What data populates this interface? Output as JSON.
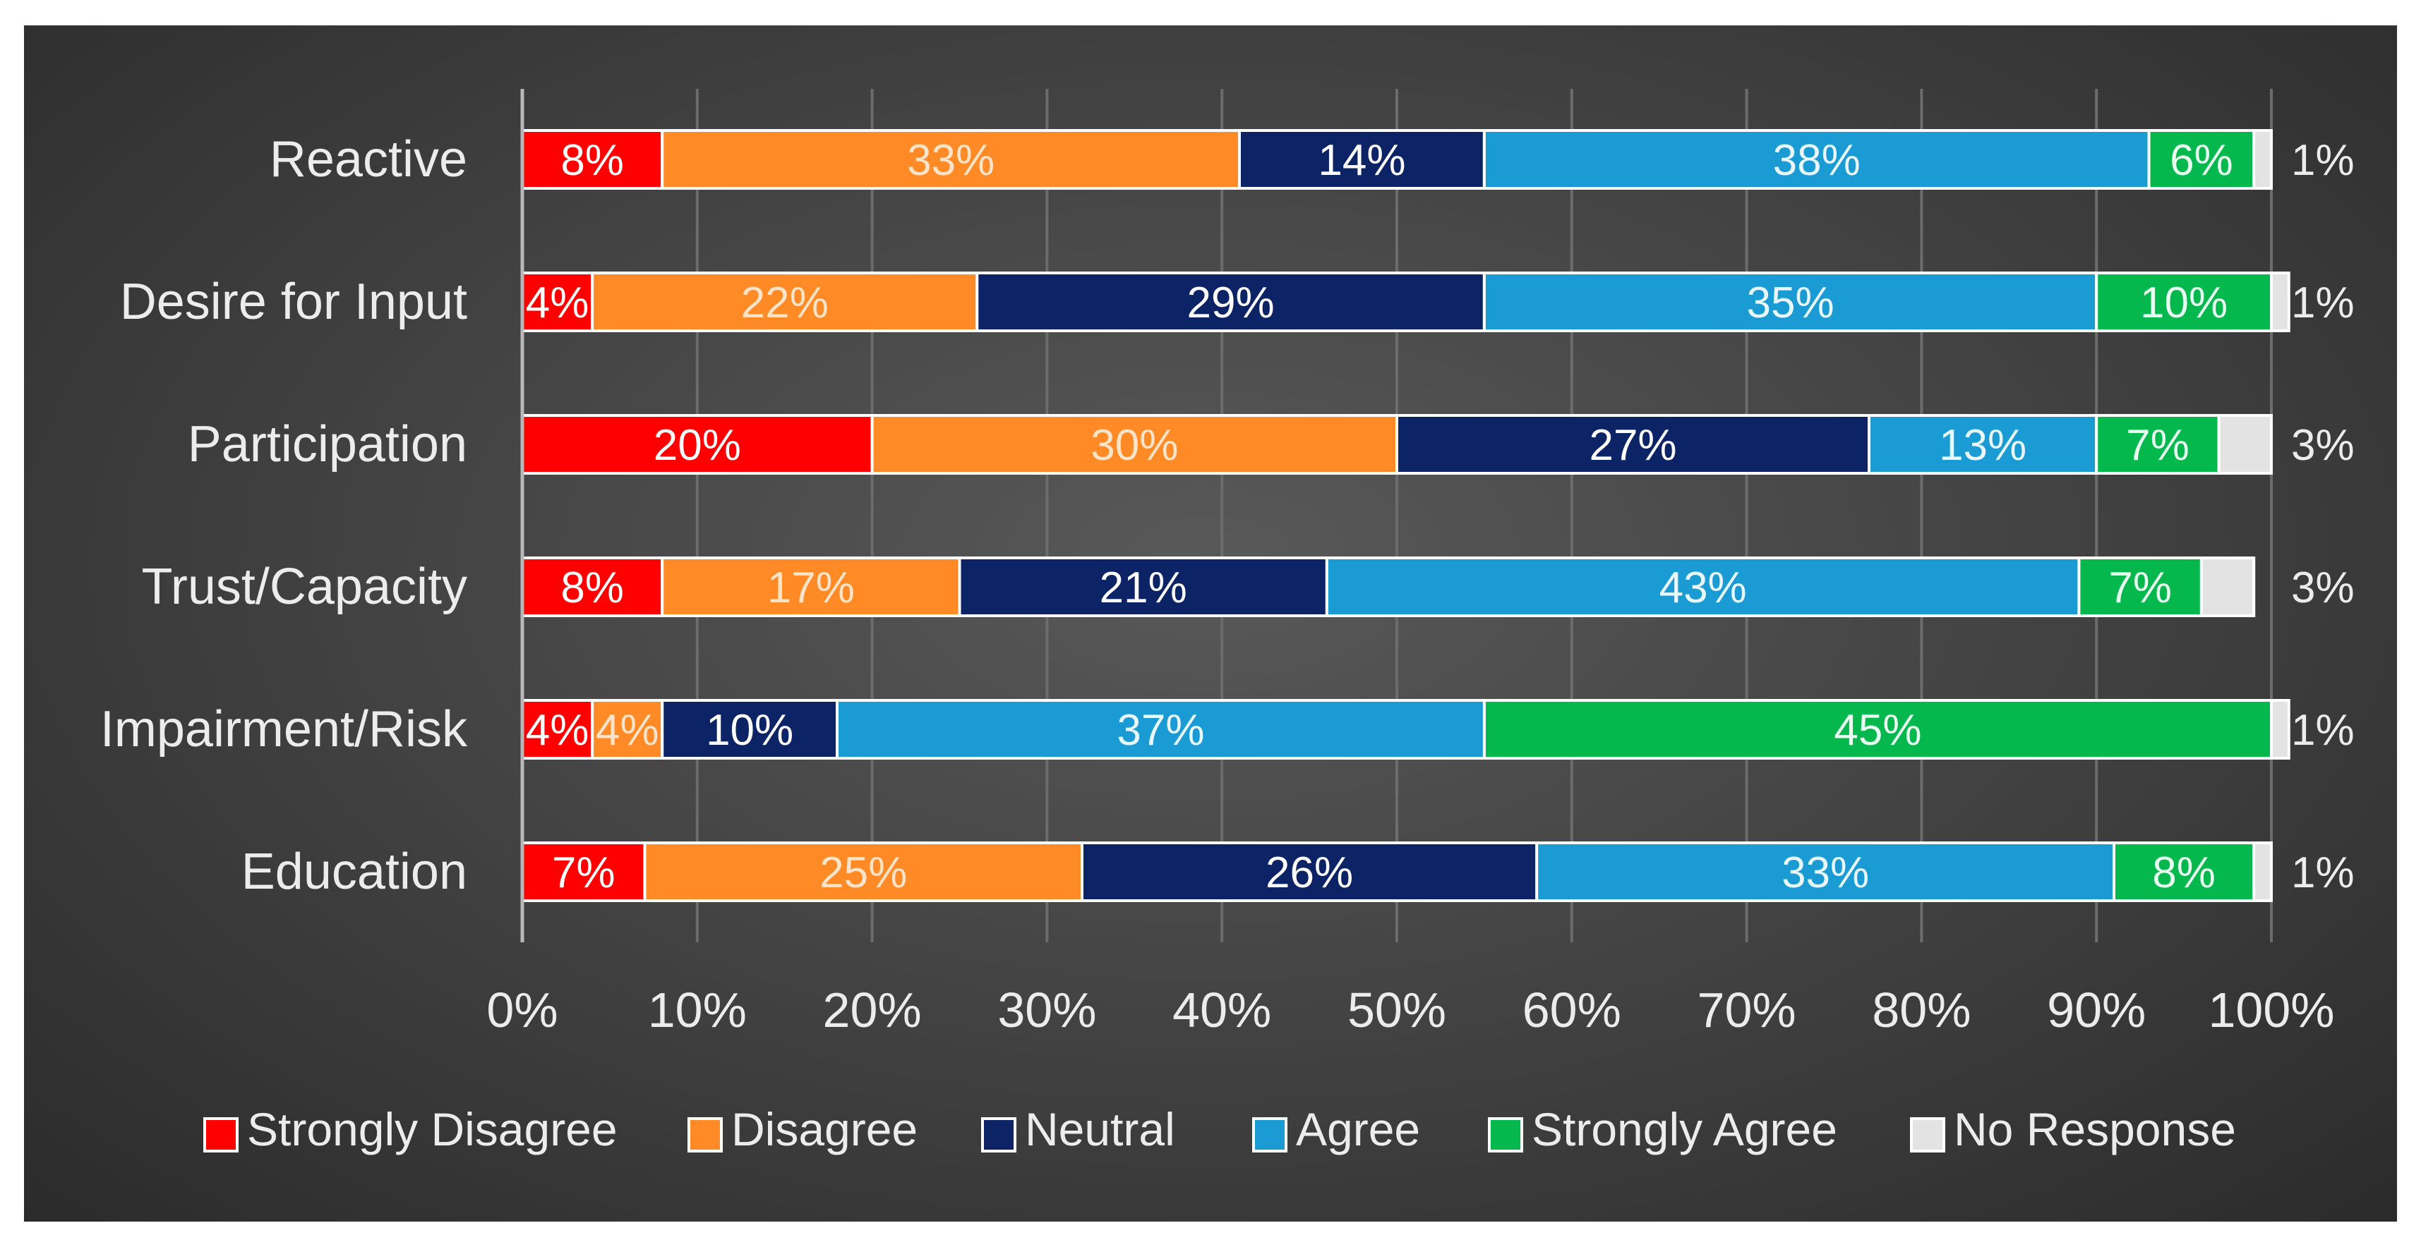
{
  "chart_data": {
    "type": "bar",
    "orientation": "horizontal",
    "stacked": true,
    "title": "",
    "xlabel": "",
    "ylabel": "",
    "xlim": [
      0,
      100
    ],
    "grid": true,
    "legend_position": "bottom",
    "categories": [
      "Reactive",
      "Desire for Input",
      "Participation",
      "Trust/Capacity",
      "Impairment/Risk",
      "Education"
    ],
    "series": [
      {
        "name": "Strongly Disagree",
        "color": "#ff0000",
        "label_color": "#ffffff",
        "values": [
          8,
          4,
          20,
          8,
          4,
          7
        ],
        "labels": [
          "8%",
          "4%",
          "20%",
          "8%",
          "4%",
          "7%"
        ]
      },
      {
        "name": "Disagree",
        "color": "#ff8a26",
        "label_color": "#fde4c8",
        "values": [
          33,
          22,
          30,
          17,
          4,
          25
        ],
        "labels": [
          "33%",
          "22%",
          "30%",
          "17%",
          "4%",
          "25%"
        ]
      },
      {
        "name": "Neutral",
        "color": "#0c2466",
        "label_color": "#ffffff",
        "values": [
          14,
          29,
          27,
          21,
          10,
          26
        ],
        "labels": [
          "14%",
          "29%",
          "27%",
          "21%",
          "10%",
          "26%"
        ]
      },
      {
        "name": "Agree",
        "color": "#1a9bd3",
        "label_color": "#e8f6fd",
        "values": [
          38,
          35,
          13,
          43,
          37,
          33
        ],
        "labels": [
          "38%",
          "35%",
          "13%",
          "43%",
          "37%",
          "33%"
        ]
      },
      {
        "name": "Strongly Agree",
        "color": "#05b84e",
        "label_color": "#e6ffee",
        "values": [
          6,
          10,
          7,
          7,
          45,
          8
        ],
        "labels": [
          "6%",
          "10%",
          "7%",
          "7%",
          "45%",
          "8%"
        ]
      },
      {
        "name": "No Response",
        "color": "#e3e3e3",
        "label_color": "#ececec",
        "values": [
          1,
          1,
          3,
          3,
          1,
          1
        ],
        "labels": [
          "1%",
          "1%",
          "3%",
          "3%",
          "1%",
          "1%"
        ]
      }
    ],
    "x_ticks": [
      "0%",
      "10%",
      "20%",
      "30%",
      "40%",
      "50%",
      "60%",
      "70%",
      "80%",
      "90%",
      "100%"
    ]
  }
}
